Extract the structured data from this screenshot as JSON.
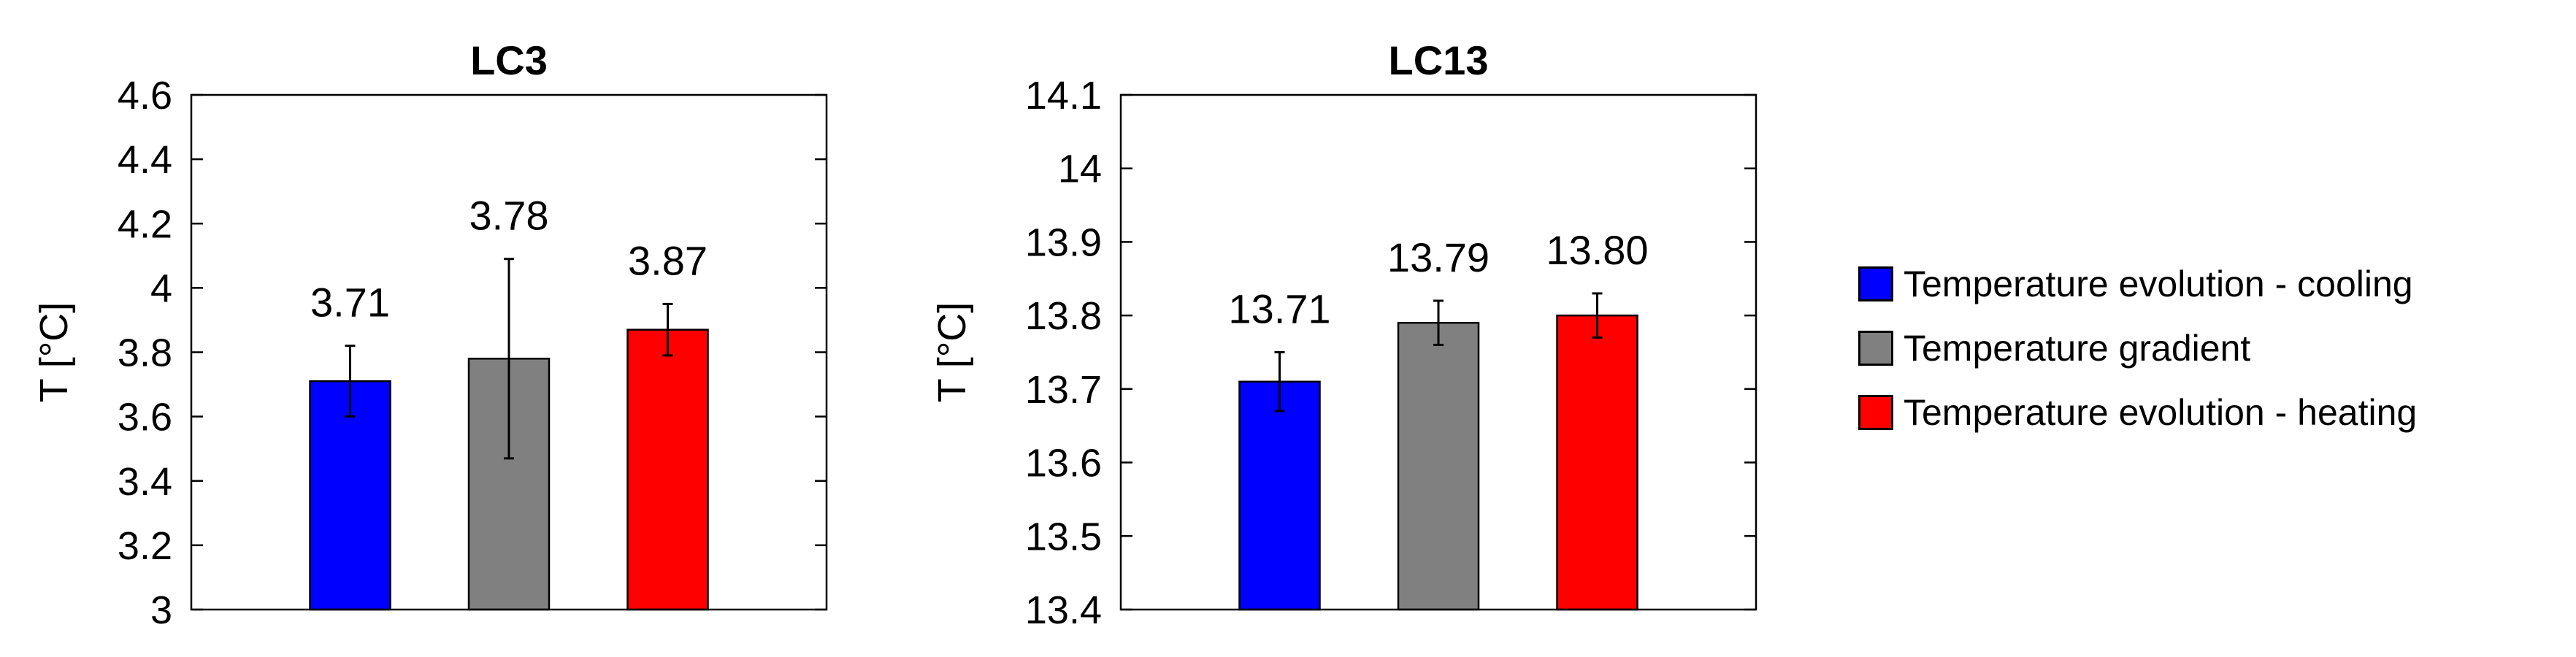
{
  "chart_data": [
    {
      "type": "bar",
      "title": "LC3",
      "ylabel": "T [°C]",
      "xlabel": "",
      "ylim": [
        3,
        4.6
      ],
      "yticks": [
        3,
        3.2,
        3.4,
        3.6,
        3.8,
        4,
        4.2,
        4.4,
        4.6
      ],
      "ytick_labels": [
        "3",
        "3.2",
        "3.4",
        "3.6",
        "3.8",
        "4",
        "4.2",
        "4.4",
        "4.6"
      ],
      "categories": [
        "Temperature evolution - cooling",
        "Temperature gradient",
        "Temperature evolution - heating"
      ],
      "values": [
        3.71,
        3.78,
        3.87
      ],
      "data_labels": [
        "3.71",
        "3.78",
        "3.87"
      ],
      "errors": [
        [
          3.6,
          3.82
        ],
        [
          3.47,
          4.09
        ],
        [
          3.79,
          3.95
        ]
      ],
      "colors": [
        "#0000ff",
        "#808080",
        "#ff0000"
      ],
      "grid": false
    },
    {
      "type": "bar",
      "title": "LC13",
      "ylabel": "T [°C]",
      "xlabel": "",
      "ylim": [
        13.4,
        14.1
      ],
      "yticks": [
        13.4,
        13.5,
        13.6,
        13.7,
        13.8,
        13.9,
        14,
        14.1
      ],
      "ytick_labels": [
        "13.4",
        "13.5",
        "13.6",
        "13.7",
        "13.8",
        "13.9",
        "14",
        "14.1"
      ],
      "categories": [
        "Temperature evolution - cooling",
        "Temperature gradient",
        "Temperature evolution - heating"
      ],
      "values": [
        13.71,
        13.79,
        13.8
      ],
      "data_labels": [
        "13.71",
        "13.79",
        "13.80"
      ],
      "errors": [
        [
          13.67,
          13.75
        ],
        [
          13.76,
          13.82
        ],
        [
          13.77,
          13.83
        ]
      ],
      "colors": [
        "#0000ff",
        "#808080",
        "#ff0000"
      ],
      "grid": false
    }
  ],
  "legend": {
    "placement": "right",
    "items": [
      {
        "label": "Temperature evolution - cooling",
        "color": "#0000ff"
      },
      {
        "label": "Temperature gradient",
        "color": "#808080"
      },
      {
        "label": "Temperature evolution - heating",
        "color": "#ff0000"
      }
    ]
  }
}
